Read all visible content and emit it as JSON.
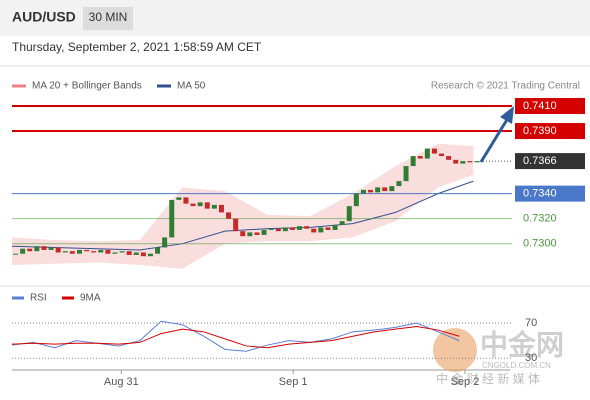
{
  "chart_data": {
    "type": "candlestick",
    "symbol": "AUD/USD",
    "timeframe": "30 MIN",
    "timestamp": "Thursday, September 2, 2021 1:58:59 AM CET",
    "source": "Research © 2021 Trading Central",
    "legend": [
      {
        "name": "MA 20 + Bollinger Bands",
        "color": "#f08080"
      },
      {
        "name": "MA 50",
        "color": "#2f4f8f"
      }
    ],
    "up_color": "#2e7d32",
    "down_color": "#c62828",
    "xlim": [
      0,
      70
    ],
    "xticks": [
      {
        "value": 15.4,
        "label": "Aug 31"
      },
      {
        "value": 39.6,
        "label": "Sep 1"
      },
      {
        "value": 63.8,
        "label": "Sep 2"
      }
    ],
    "ylim": [
      0.7267,
      0.7418
    ],
    "values": [
      0.7292,
      0.7296,
      0.7294,
      0.7298,
      0.7295,
      0.7297,
      0.7293,
      0.7294,
      0.7292,
      0.7295,
      0.7294,
      0.7293,
      0.7295,
      0.7292,
      0.7293,
      0.7294,
      0.7291,
      0.7293,
      0.729,
      0.7292,
      0.7297,
      0.7305,
      0.7335,
      0.7337,
      0.7332,
      0.733,
      0.7333,
      0.7328,
      0.7331,
      0.7325,
      0.732,
      0.731,
      0.7306,
      0.7309,
      0.7307,
      0.7311,
      0.7312,
      0.731,
      0.7313,
      0.7311,
      0.7314,
      0.7312,
      0.7309,
      0.7313,
      0.7311,
      0.7315,
      0.7318,
      0.733,
      0.734,
      0.7343,
      0.7341,
      0.7345,
      0.7342,
      0.7346,
      0.735,
      0.7362,
      0.737,
      0.7368,
      0.7376,
      0.7372,
      0.737,
      0.7367,
      0.7364,
      0.7366,
      0.7365,
      0.7366
    ],
    "bands": {
      "color": "#f8d0d0",
      "x": [
        0,
        6,
        12,
        18,
        24,
        30,
        36,
        42,
        48,
        54,
        60,
        65
      ],
      "upper": [
        0.7305,
        0.7303,
        0.7302,
        0.7303,
        0.7345,
        0.7342,
        0.7323,
        0.7322,
        0.734,
        0.7362,
        0.738,
        0.7378
      ],
      "lower": [
        0.7283,
        0.7284,
        0.7285,
        0.7283,
        0.728,
        0.73,
        0.7302,
        0.7302,
        0.7305,
        0.7318,
        0.7345,
        0.7355
      ],
      "ma50": [
        0.7298,
        0.7297,
        0.7296,
        0.7295,
        0.73,
        0.731,
        0.7312,
        0.7313,
        0.7316,
        0.7325,
        0.734,
        0.735
      ]
    },
    "levels": [
      {
        "value": 0.741,
        "label": "0.7410",
        "color": "#d40000",
        "style": "box"
      },
      {
        "value": 0.739,
        "label": "0.7390",
        "color": "#d40000",
        "style": "box"
      },
      {
        "value": 0.7366,
        "label": "0.7366",
        "color": "#333333",
        "style": "current"
      },
      {
        "value": 0.734,
        "label": "0.7340",
        "color": "#4a78c8",
        "style": "box"
      },
      {
        "value": 0.732,
        "label": "0.7320",
        "color": "#4a9a3a",
        "style": "text"
      },
      {
        "value": 0.73,
        "label": "0.7300",
        "color": "#4a9a3a",
        "style": "text"
      }
    ],
    "rsi": {
      "ylim": [
        19,
        87
      ],
      "yticks": [
        70,
        30
      ],
      "x": [
        0,
        3,
        6,
        9,
        12,
        15,
        18,
        21,
        24,
        27,
        30,
        33,
        36,
        39,
        42,
        45,
        48,
        51,
        54,
        57,
        60,
        63
      ],
      "series": [
        {
          "name": "RSI",
          "color": "#5b7fd6",
          "values": [
            45,
            48,
            42,
            50,
            47,
            44,
            50,
            72,
            68,
            55,
            40,
            38,
            45,
            50,
            48,
            52,
            60,
            62,
            65,
            70,
            60,
            50
          ]
        },
        {
          "name": "9MA",
          "color": "#d40000",
          "values": [
            46,
            47,
            46,
            47,
            47,
            46,
            48,
            58,
            63,
            60,
            52,
            44,
            42,
            46,
            48,
            50,
            55,
            60,
            63,
            66,
            62,
            55
          ]
        }
      ]
    },
    "watermark": {
      "logo": "中金网",
      "site": "CNGOLD.COM.CN",
      "tagline": "中 金 财 经 新 媒 体"
    }
  }
}
